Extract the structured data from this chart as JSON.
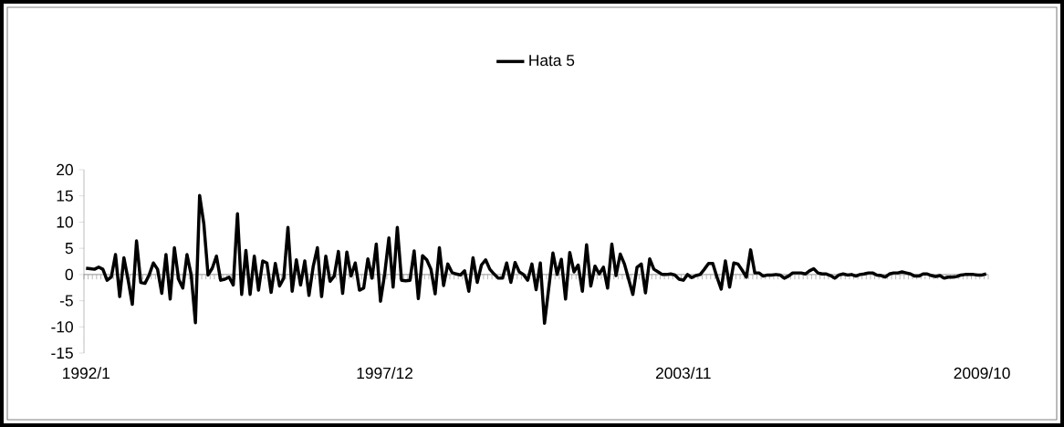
{
  "chart_data": {
    "type": "line",
    "categories": [
      "1992/1",
      null,
      null,
      null,
      null,
      null,
      null,
      null,
      null,
      null,
      null,
      null,
      null,
      null,
      null,
      null,
      null,
      null,
      null,
      null,
      null,
      null,
      null,
      null,
      null,
      null,
      null,
      null,
      null,
      null,
      null,
      null,
      null,
      null,
      null,
      null,
      null,
      null,
      null,
      null,
      null,
      null,
      null,
      null,
      null,
      null,
      null,
      null,
      null,
      null,
      null,
      null,
      null,
      null,
      null,
      null,
      null,
      null,
      null,
      null,
      null,
      null,
      null,
      null,
      null,
      null,
      null,
      null,
      null,
      null,
      null,
      "1997/12",
      null,
      null,
      null,
      null,
      null,
      null,
      null,
      null,
      null,
      null,
      null,
      null,
      null,
      null,
      null,
      null,
      null,
      null,
      null,
      null,
      null,
      null,
      null,
      null,
      null,
      null,
      null,
      null,
      null,
      null,
      null,
      null,
      null,
      null,
      null,
      null,
      null,
      null,
      null,
      null,
      null,
      null,
      null,
      null,
      null,
      null,
      null,
      null,
      null,
      null,
      null,
      null,
      null,
      null,
      null,
      null,
      null,
      null,
      null,
      null,
      null,
      null,
      null,
      null,
      null,
      null,
      null,
      null,
      null,
      null,
      "2003/11",
      null,
      null,
      null,
      null,
      null,
      null,
      null,
      null,
      null,
      null,
      null,
      null,
      null,
      null,
      null,
      null,
      null,
      null,
      null,
      null,
      null,
      null,
      null,
      null,
      null,
      null,
      null,
      null,
      null,
      null,
      null,
      null,
      null,
      null,
      null,
      null,
      null,
      null,
      null,
      null,
      null,
      null,
      null,
      null,
      null,
      null,
      null,
      null,
      null,
      null,
      null,
      null,
      null,
      null,
      null,
      null,
      null,
      null,
      null,
      null,
      null,
      null,
      null,
      null,
      null,
      null,
      null,
      null,
      null,
      null,
      "2009/10",
      null
    ],
    "series": [
      {
        "name": "Hata 5",
        "color": "#000000",
        "values": [
          1.2,
          1.1,
          1.0,
          1.4,
          1.0,
          -1.1,
          -0.5,
          3.8,
          -4.2,
          3.2,
          -1.0,
          -5.7,
          6.4,
          -1.5,
          -1.7,
          -0.1,
          2.2,
          1.0,
          -3.6,
          3.8,
          -4.7,
          5.1,
          -0.9,
          -2.6,
          3.8,
          -0.1,
          -9.2,
          15.1,
          9.7,
          -0.1,
          1.2,
          3.5,
          -1.1,
          -0.9,
          -0.5,
          -2.0,
          11.6,
          -3.8,
          4.6,
          -3.8,
          3.5,
          -3.0,
          2.6,
          2.2,
          -3.4,
          2.1,
          -2.2,
          -0.7,
          9.0,
          -3.2,
          2.8,
          -2.0,
          2.6,
          -4.0,
          1.5,
          5.1,
          -4.2,
          3.5,
          -1.3,
          -0.3,
          4.4,
          -3.6,
          4.3,
          -0.3,
          2.2,
          -3.0,
          -2.6,
          3.0,
          -0.7,
          5.8,
          -5.1,
          0.1,
          7.0,
          -2.4,
          9.0,
          -1.1,
          -1.2,
          -1.1,
          4.5,
          -4.6,
          3.6,
          2.8,
          1.0,
          -3.7,
          5.1,
          -2.1,
          2.0,
          0.4,
          0.1,
          -0.1,
          0.7,
          -3.2,
          3.2,
          -1.5,
          1.8,
          2.8,
          1.0,
          0.1,
          -0.7,
          -0.7,
          2.2,
          -1.5,
          2.3,
          0.5,
          0.0,
          -1.1,
          2.0,
          -2.9,
          2.2,
          -9.3,
          -2.6,
          4.1,
          0.0,
          2.9,
          -4.7,
          4.2,
          0.5,
          1.8,
          -3.2,
          5.7,
          -2.2,
          1.6,
          0.1,
          1.4,
          -2.6,
          5.8,
          -0.2,
          3.9,
          2.0,
          -0.9,
          -3.8,
          1.4,
          2.0,
          -3.5,
          3.0,
          1.0,
          0.5,
          0.0,
          0.0,
          0.1,
          -0.1,
          -0.9,
          -1.1,
          0.0,
          -0.6,
          -0.2,
          0.0,
          1.0,
          2.1,
          2.1,
          -0.5,
          -2.8,
          2.6,
          -2.4,
          2.2,
          2.0,
          0.8,
          -0.5,
          4.7,
          0.3,
          0.3,
          -0.3,
          -0.1,
          -0.1,
          0.0,
          -0.1,
          -0.7,
          -0.3,
          0.3,
          0.3,
          0.3,
          0.1,
          0.7,
          1.1,
          0.3,
          0.1,
          0.1,
          -0.2,
          -0.7,
          -0.1,
          0.1,
          -0.1,
          0.0,
          -0.3,
          0.0,
          0.1,
          0.3,
          0.3,
          -0.1,
          -0.2,
          -0.5,
          0.1,
          0.3,
          0.3,
          0.5,
          0.3,
          0.1,
          -0.3,
          -0.3,
          0.1,
          0.1,
          -0.2,
          -0.4,
          -0.2,
          -0.7,
          -0.5,
          -0.5,
          -0.4,
          -0.1,
          0.0,
          0.0,
          0.0,
          -0.1,
          -0.1,
          0.1
        ]
      }
    ],
    "ylim": [
      -15,
      20
    ],
    "yticks": [
      -15,
      -10,
      -5,
      0,
      5,
      10,
      15,
      20
    ],
    "legend": "top",
    "marker": "none",
    "line_style": "solid"
  }
}
